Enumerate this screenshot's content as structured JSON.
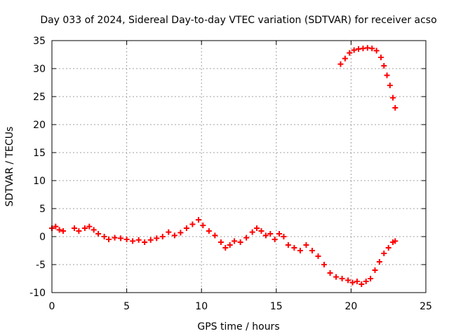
{
  "chart_data": {
    "type": "scatter",
    "title": "Day 033 of 2024, Sidereal Day-to-day VTEC variation (SDTVAR) for receiver acso",
    "xlabel": "GPS time / hours",
    "ylabel": "SDTVAR / TECUs",
    "xlim": [
      0,
      25
    ],
    "ylim": [
      -10,
      35
    ],
    "x_ticks": [
      0,
      5,
      10,
      15,
      20,
      25
    ],
    "y_ticks": [
      -10,
      -5,
      0,
      5,
      10,
      15,
      20,
      25,
      30,
      35
    ],
    "x_tick_labels": [
      "0",
      "5",
      "10",
      "15",
      "20",
      "25"
    ],
    "y_tick_labels": [
      "-10",
      "-5",
      "0",
      "5",
      "10",
      "15",
      "20",
      "25",
      "30",
      "35"
    ],
    "grid": true,
    "series": [
      {
        "name": "SDTVAR",
        "color": "#ff0000",
        "x": [
          0.0,
          0.25,
          0.5,
          0.75,
          1.5,
          1.8,
          2.2,
          2.5,
          2.8,
          3.1,
          3.5,
          3.8,
          4.2,
          4.6,
          5.0,
          5.4,
          5.8,
          6.2,
          6.6,
          7.0,
          7.4,
          7.8,
          8.2,
          8.6,
          9.0,
          9.4,
          9.8,
          10.1,
          10.5,
          10.9,
          11.3,
          11.6,
          11.9,
          12.2,
          12.6,
          13.0,
          13.4,
          13.7,
          14.0,
          14.3,
          14.6,
          14.9,
          15.2,
          15.5,
          15.8,
          16.2,
          16.6,
          17.0,
          17.4,
          17.8,
          18.2,
          18.6,
          19.0,
          19.4,
          19.8,
          20.1,
          20.4,
          20.7,
          21.0,
          21.3,
          21.6,
          21.9,
          22.2,
          22.5,
          22.8,
          22.95,
          19.3,
          19.6,
          19.9,
          20.2,
          20.5,
          20.8,
          21.1,
          21.4,
          21.7,
          22.0,
          22.2,
          22.4,
          22.6,
          22.8,
          22.95
        ],
        "y": [
          1.5,
          1.8,
          1.2,
          1.0,
          1.5,
          1.0,
          1.5,
          1.8,
          1.2,
          0.5,
          0.0,
          -0.5,
          -0.2,
          -0.3,
          -0.5,
          -0.8,
          -0.6,
          -1.0,
          -0.6,
          -0.3,
          0.0,
          0.8,
          0.2,
          0.7,
          1.5,
          2.2,
          3.0,
          2.0,
          1.0,
          0.2,
          -1.0,
          -2.0,
          -1.5,
          -0.8,
          -1.0,
          -0.2,
          0.8,
          1.5,
          1.0,
          0.2,
          0.5,
          -0.5,
          0.5,
          0.0,
          -1.5,
          -2.0,
          -2.5,
          -1.5,
          -2.5,
          -3.5,
          -5.0,
          -6.5,
          -7.2,
          -7.5,
          -7.8,
          -8.2,
          -8.0,
          -8.5,
          -8.0,
          -7.5,
          -6.0,
          -4.5,
          -3.0,
          -2.0,
          -1.0,
          -0.8,
          30.8,
          31.8,
          32.8,
          33.3,
          33.5,
          33.6,
          33.7,
          33.6,
          33.2,
          32.0,
          30.5,
          28.8,
          27.0,
          24.8,
          23.0
        ],
        "labels": []
      }
    ]
  }
}
